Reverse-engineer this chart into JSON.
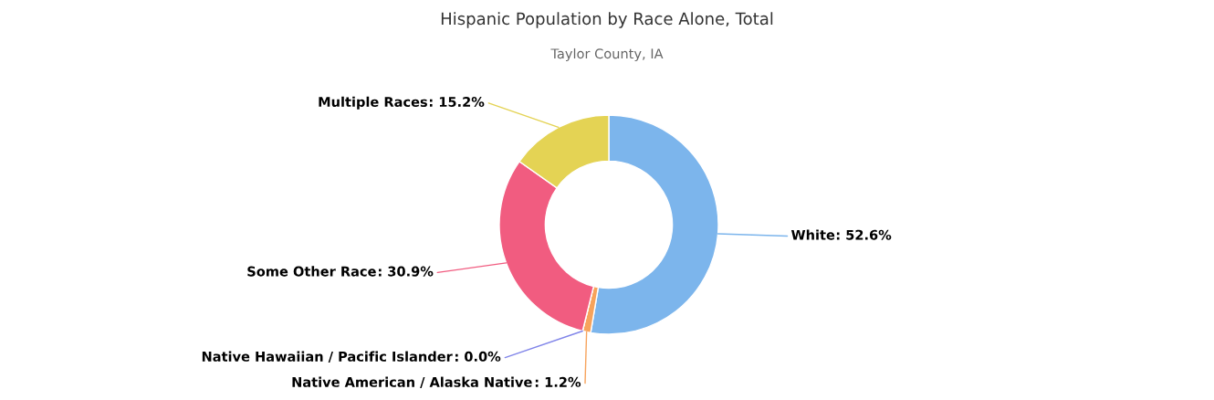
{
  "chart_data": {
    "type": "donut",
    "title": "Hispanic Population by Race Alone, Total",
    "subtitle": "Taylor County, IA",
    "categories": [
      "White",
      "Native American / Alaska Native",
      "Native Hawaiian / Pacific Islander",
      "Some Other Race",
      "Multiple Races"
    ],
    "values": [
      52.6,
      1.2,
      0.0,
      30.9,
      15.2
    ],
    "colors": [
      "#7cb5ec",
      "#f7a35c",
      "#8085e9",
      "#f15c80",
      "#e4d354"
    ],
    "value_labels": [
      ": 52.6%",
      ": 1.2%",
      ": 0.0%",
      ": 30.9%",
      ": 15.2%"
    ],
    "legend": false
  }
}
